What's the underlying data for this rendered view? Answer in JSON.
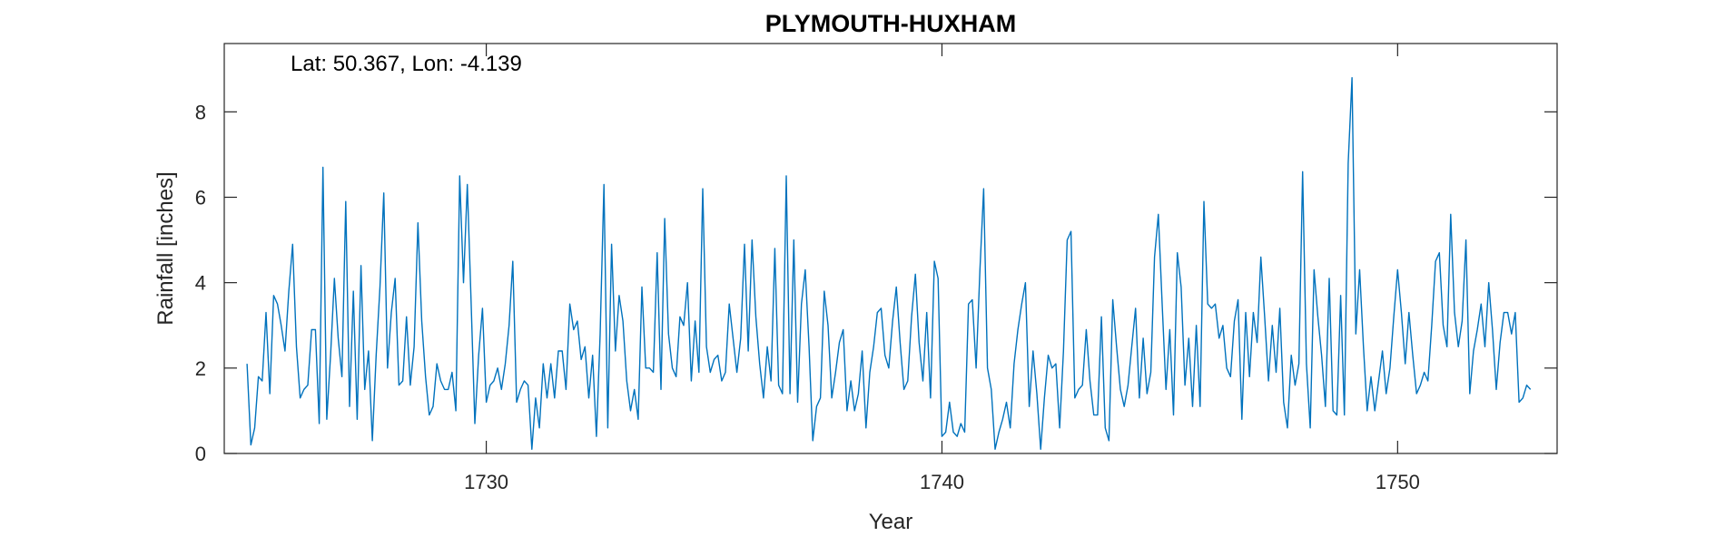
{
  "chart_data": {
    "type": "line",
    "title": "PLYMOUTH-HUXHAM",
    "annotation": "Lat: 50.367, Lon: -4.139",
    "xlabel": "Year",
    "ylabel": "Rainfall [inches]",
    "xlim": [
      1724.25,
      1753.5
    ],
    "ylim": [
      0,
      9.6
    ],
    "xticks": [
      1730,
      1740,
      1750
    ],
    "yticks": [
      0,
      2,
      4,
      6,
      8
    ],
    "grid": false,
    "line_color": "#0072BD",
    "series": [
      {
        "x_start": 1724.75,
        "x_step": 0.08333,
        "values": [
          2.1,
          0.2,
          0.6,
          1.8,
          1.7,
          3.3,
          1.4,
          3.7,
          3.5,
          3.0,
          2.4,
          3.8,
          4.9,
          2.5,
          1.3,
          1.5,
          1.6,
          2.9,
          2.9,
          0.7,
          6.7,
          0.8,
          2.3,
          4.1,
          2.7,
          1.8,
          5.9,
          1.1,
          3.8,
          0.8,
          4.4,
          1.5,
          2.4,
          0.3,
          2.3,
          3.9,
          6.1,
          2.0,
          3.3,
          4.1,
          1.6,
          1.7,
          3.2,
          1.6,
          2.5,
          5.4,
          3.1,
          1.8,
          0.9,
          1.1,
          2.1,
          1.7,
          1.5,
          1.5,
          1.9,
          1.0,
          6.5,
          4.0,
          6.3,
          3.6,
          0.7,
          2.3,
          3.4,
          1.2,
          1.6,
          1.7,
          2.0,
          1.5,
          2.1,
          3.0,
          4.5,
          1.2,
          1.5,
          1.7,
          1.6,
          0.1,
          1.3,
          0.6,
          2.1,
          1.3,
          2.1,
          1.3,
          2.4,
          2.4,
          1.5,
          3.5,
          2.9,
          3.1,
          2.2,
          2.5,
          1.3,
          2.3,
          0.4,
          2.8,
          6.3,
          0.6,
          4.9,
          2.4,
          3.7,
          3.1,
          1.7,
          1.0,
          1.5,
          0.8,
          3.9,
          2.0,
          2.0,
          1.9,
          4.7,
          1.5,
          5.5,
          2.8,
          2.0,
          1.8,
          3.2,
          3.0,
          4.0,
          1.7,
          3.1,
          1.9,
          6.2,
          2.5,
          1.9,
          2.2,
          2.3,
          1.7,
          1.9,
          3.5,
          2.7,
          1.9,
          2.7,
          4.9,
          2.4,
          5.0,
          3.2,
          2.1,
          1.3,
          2.5,
          1.7,
          4.8,
          1.6,
          1.4,
          6.5,
          1.4,
          5.0,
          1.2,
          3.5,
          4.3,
          2.5,
          0.3,
          1.1,
          1.3,
          3.8,
          3.0,
          1.3,
          1.9,
          2.6,
          2.9,
          1.0,
          1.7,
          1.0,
          1.4,
          2.4,
          0.6,
          1.9,
          2.5,
          3.3,
          3.4,
          2.3,
          2.0,
          3.1,
          3.9,
          2.6,
          1.5,
          1.7,
          3.2,
          4.2,
          2.6,
          1.7,
          3.3,
          1.3,
          4.5,
          4.1,
          0.4,
          0.5,
          1.2,
          0.5,
          0.4,
          0.7,
          0.5,
          3.5,
          3.6,
          2.0,
          4.3,
          6.2,
          2.0,
          1.5,
          0.1,
          0.5,
          0.8,
          1.2,
          0.6,
          2.1,
          2.9,
          3.5,
          4.0,
          1.1,
          2.4,
          1.4,
          0.1,
          1.3,
          2.3,
          2.0,
          2.1,
          0.6,
          2.4,
          5.0,
          5.2,
          1.3,
          1.5,
          1.6,
          2.9,
          1.7,
          0.9,
          0.9,
          3.2,
          0.6,
          0.3,
          3.6,
          2.5,
          1.5,
          1.1,
          1.6,
          2.5,
          3.4,
          1.3,
          2.7,
          1.4,
          1.9,
          4.6,
          5.6,
          3.5,
          1.5,
          2.9,
          0.9,
          4.7,
          3.9,
          1.6,
          2.7,
          1.1,
          3.0,
          1.1,
          5.9,
          3.5,
          3.4,
          3.5,
          2.7,
          3.0,
          2.0,
          1.8,
          3.1,
          3.6,
          0.8,
          3.3,
          1.8,
          3.3,
          2.6,
          4.6,
          3.2,
          1.7,
          3.0,
          1.9,
          3.4,
          1.2,
          0.6,
          2.3,
          1.6,
          2.1,
          6.6,
          2.1,
          0.6,
          4.3,
          3.2,
          2.3,
          1.1,
          4.1,
          1.0,
          0.9,
          3.7,
          0.9,
          6.8,
          8.8,
          2.8,
          4.3,
          2.5,
          1.0,
          1.8,
          1.0,
          1.7,
          2.4,
          1.4,
          2.0,
          3.2,
          4.3,
          3.3,
          2.1,
          3.3,
          2.3,
          1.4,
          1.6,
          1.9,
          1.7,
          3.0,
          4.5,
          4.7,
          3.0,
          2.5,
          5.6,
          3.3,
          2.5,
          3.1,
          5.0,
          1.4,
          2.4,
          2.9,
          3.5,
          2.5,
          4.0,
          2.9,
          1.5,
          2.6,
          3.3,
          3.3,
          2.8,
          3.3,
          1.2,
          1.3,
          1.6,
          1.5
        ]
      }
    ]
  }
}
